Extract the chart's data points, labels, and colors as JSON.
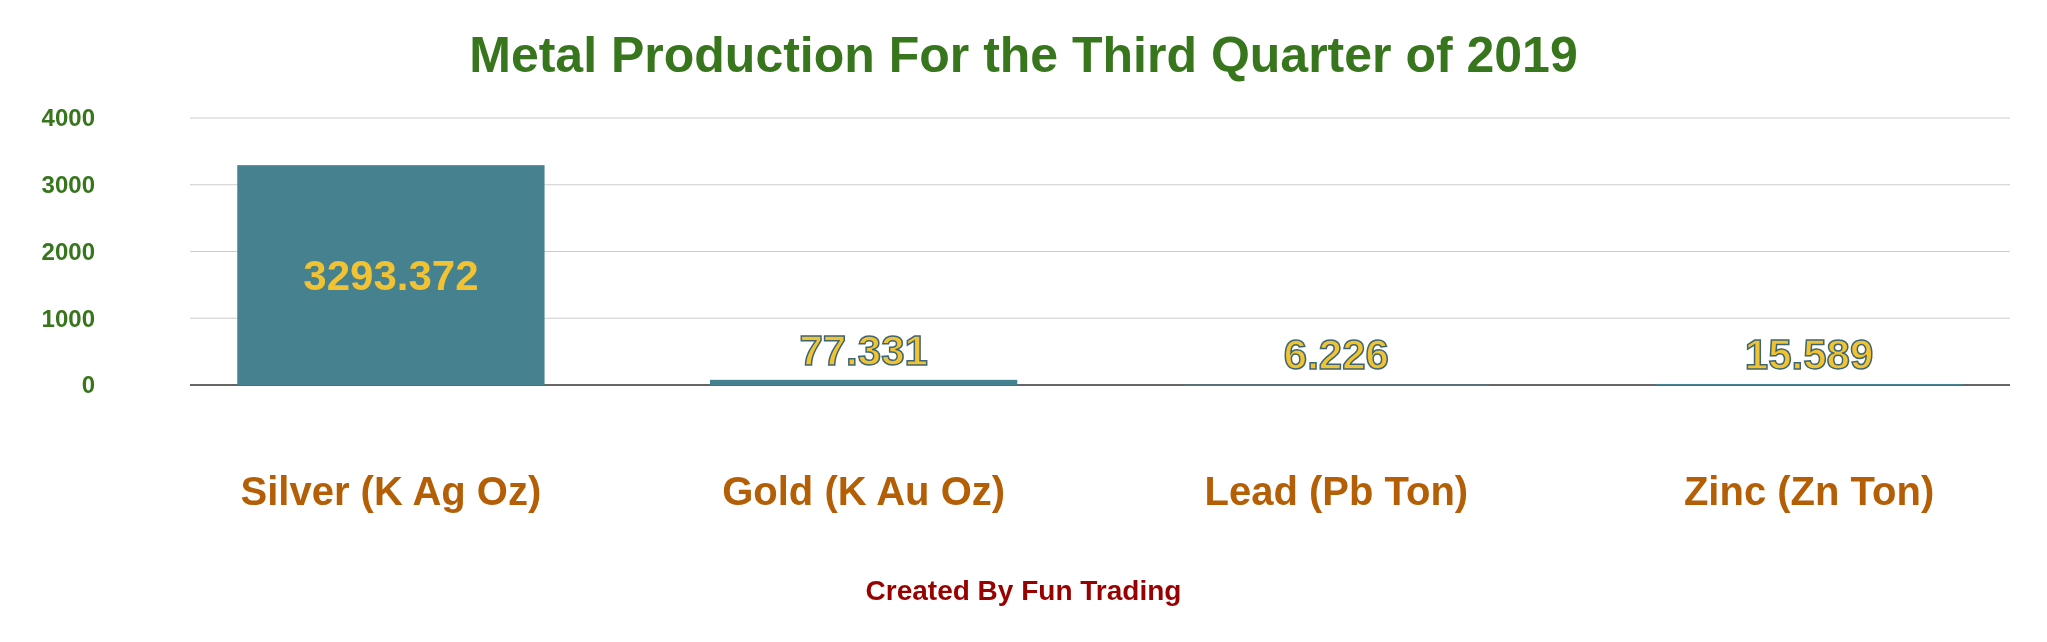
{
  "chart_data": {
    "type": "bar",
    "title": "Metal Production For the Third Quarter of 2019",
    "categories": [
      "Silver (K Ag Oz)",
      "Gold (K Au Oz)",
      "Lead (Pb Ton)",
      "Zinc (Zn Ton)"
    ],
    "values": [
      3293.372,
      77.331,
      6.226,
      15.589
    ],
    "color": "#45818e",
    "ylim": [
      0,
      4000
    ],
    "yticks": [
      0,
      1000,
      2000,
      3000,
      4000
    ],
    "grid": "y",
    "data_labels": true,
    "annotations": [
      "Created By Fun Trading"
    ]
  }
}
